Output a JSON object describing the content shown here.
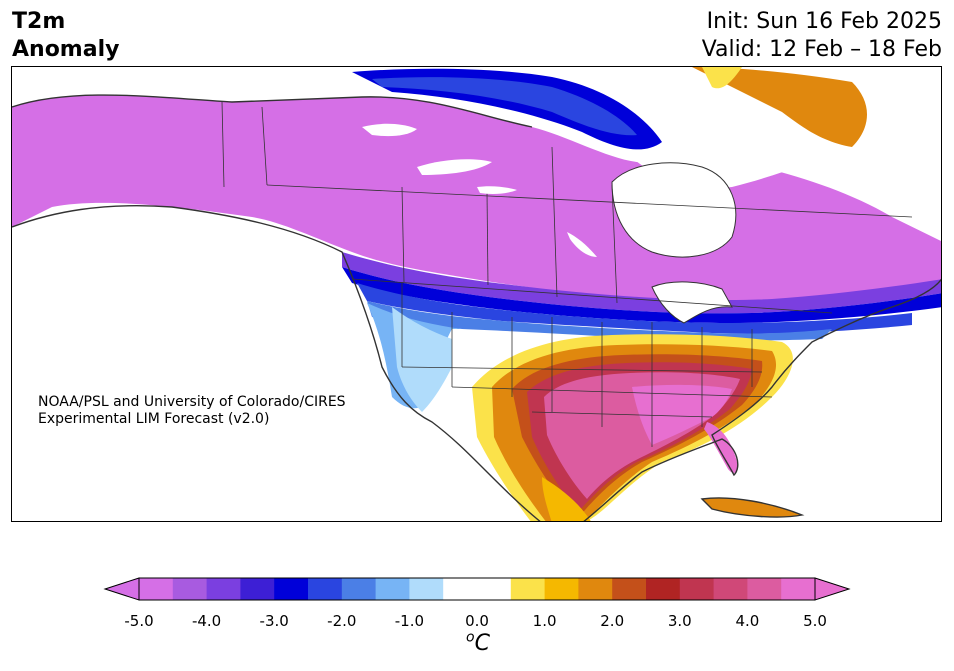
{
  "title": {
    "line1": "T2m",
    "line2": "Anomaly"
  },
  "dates": {
    "init": "Init: Sun 16 Feb 2025",
    "valid": "Valid: 12 Feb – 18 Feb"
  },
  "credit": {
    "line1": "NOAA/PSL and University of Colorado/CIRES",
    "line2": "Experimental LIM Forecast (v2.0)"
  },
  "colorbar": {
    "unit": "oC",
    "ticks": [
      "-5.0",
      "-4.0",
      "-3.0",
      "-2.0",
      "-1.0",
      "0.0",
      "1.0",
      "2.0",
      "3.0",
      "4.0",
      "5.0"
    ],
    "colors": [
      "#d56fe6",
      "#a85be0",
      "#7b3fe0",
      "#3d1fd5",
      "#0000d9",
      "#2a45e0",
      "#4b7fe6",
      "#77b4f5",
      "#b0dcfb",
      "#ffffff",
      "#ffffff",
      "#fbe24a",
      "#f5b800",
      "#e0880e",
      "#c4501a",
      "#b02423",
      "#c03550",
      "#d04878",
      "#dc5ca0",
      "#e76fd0"
    ]
  },
  "map": {
    "land_color": "#ffffff",
    "border_color": "#333333"
  }
}
